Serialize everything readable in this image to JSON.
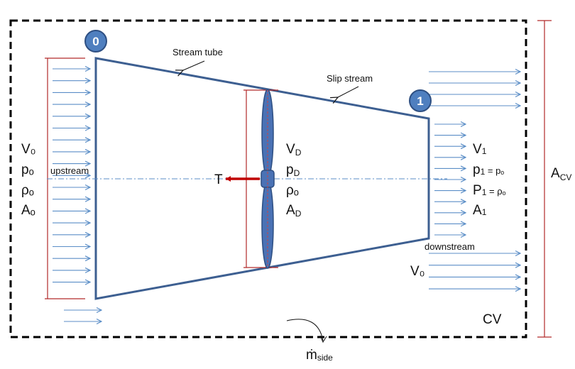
{
  "diagram": {
    "stations": {
      "inlet": "0",
      "outlet": "1"
    },
    "labels": {
      "stream_tube": "Stream tube",
      "slip_stream": "Slip stream",
      "upstream": "upstream",
      "downstream": "downstream",
      "thrust": "T",
      "control_volume": "CV",
      "area_cv_main": "A",
      "area_cv_sub": "CV",
      "mass_flow_main": "ṁ",
      "mass_flow_sub": "side"
    },
    "inlet_conditions": {
      "velocity": "V₀",
      "pressure": "pₒ",
      "density": "ρₒ",
      "area": "Aₒ"
    },
    "disk_conditions": {
      "v_main": "V",
      "v_sub": "D",
      "p_main": "p",
      "p_sub": "D",
      "rho": "ρₒ",
      "a_main": "A",
      "a_sub": "D"
    },
    "outlet_conditions": {
      "v_main": "V",
      "v_sub": "1",
      "p_main": "p",
      "p_sub": "1",
      "p_rhs": " = pₒ",
      "rho_main": "P",
      "rho_sub": "1",
      "rho_rhs": " = ρₒ",
      "a_main": "A",
      "a_sub": "1"
    },
    "side_velocity": "V₀",
    "colors": {
      "tube": "#3d5f91",
      "arrow": "#5b8ec7",
      "dim": "#b22a2a",
      "thrust": "#c00000",
      "disk": "#4a72b5",
      "badge": "#4f7fbf"
    }
  }
}
